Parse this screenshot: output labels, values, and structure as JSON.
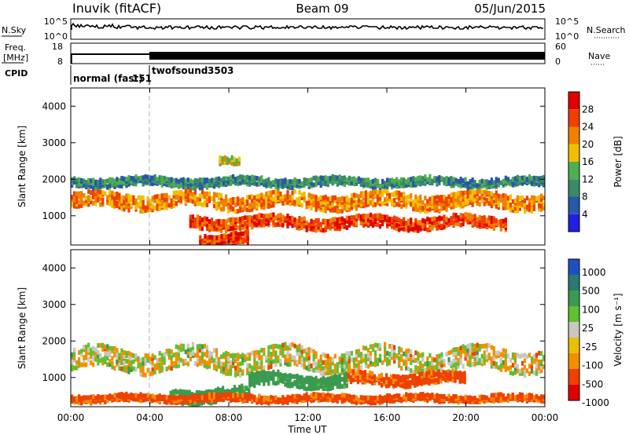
{
  "header": {
    "title": "Inuvik (fitACF)",
    "beam": "Beam 09",
    "date": "05/Jun/2015"
  },
  "strips": {
    "nsky_label": "N.Sky",
    "nsearch_label": "N.Search",
    "nsky_ticks": [
      "10^5",
      "10^0"
    ],
    "freq_label_1": "Freq.",
    "freq_label_2": "[MHz]",
    "freq_ticks": [
      "18",
      "8"
    ],
    "nave_label": "Nave",
    "nave_ticks": [
      "60",
      "0"
    ],
    "cpid_label": "CPID",
    "cpid_segments": [
      {
        "name": "normal (fast)",
        "id": "151",
        "start": "00:00"
      },
      {
        "name": "twofsound",
        "id": "3503",
        "start": "04:00"
      }
    ]
  },
  "colors": {
    "power_scale": [
      "#2020e0",
      "#2858a8",
      "#3a8a6a",
      "#4fae4f",
      "#f0c000",
      "#f08000",
      "#f04000",
      "#e00000"
    ],
    "velocity_scale": [
      "#e00000",
      "#f04000",
      "#f09000",
      "#e8c000",
      "#c8c8c0",
      "#60c030",
      "#3a9a50",
      "#2a7a70",
      "#2050c0"
    ]
  },
  "chart_data": [
    {
      "type": "heatmap",
      "name": "power",
      "ylabel": "Slant Range [km]",
      "yticks": [
        "4000",
        "3000",
        "2000",
        "1000"
      ],
      "ylim": [
        200,
        4500
      ],
      "colorbar_label": "Power [dB]",
      "colorbar_ticks": [
        "28",
        "24",
        "20",
        "16",
        "12",
        "8",
        "4"
      ],
      "clim": [
        0,
        32
      ],
      "structures": [
        {
          "x0": 0,
          "x1": 24,
          "range_center": 1500,
          "range_width": 400,
          "value": 22
        },
        {
          "x0": 6,
          "x1": 22,
          "range_center": 900,
          "range_width": 300,
          "value": 26
        },
        {
          "x0": 6.5,
          "x1": 9,
          "range_center": 450,
          "range_width": 300,
          "value": 26
        },
        {
          "x0": 0,
          "x1": 24,
          "range_center": 2000,
          "range_width": 200,
          "value": 10
        },
        {
          "x0": 7.5,
          "x1": 8.5,
          "range_center": 2550,
          "range_width": 150,
          "value": 18
        }
      ]
    },
    {
      "type": "heatmap",
      "name": "velocity",
      "ylabel": "Slant Range [km]",
      "xlabel": "Time UT",
      "xticks": [
        "00:00",
        "04:00",
        "08:00",
        "12:00",
        "16:00",
        "20:00",
        "00:00"
      ],
      "yticks": [
        "4000",
        "3000",
        "2000",
        "1000"
      ],
      "ylim": [
        200,
        4500
      ],
      "colorbar_label": "Velocity [m s⁻¹]",
      "colorbar_ticks": [
        "1000",
        "500",
        "100",
        "25",
        "-25",
        "-100",
        "-500",
        "-1000"
      ],
      "clim": [
        -1000,
        1000
      ],
      "structures": [
        {
          "x0": 0,
          "x1": 24,
          "range_center": 1600,
          "range_width": 600,
          "value": 0
        },
        {
          "x0": 9,
          "x1": 14,
          "range_center": 1000,
          "range_width": 350,
          "value": 200
        },
        {
          "x0": 14,
          "x1": 20,
          "range_center": 1050,
          "range_width": 300,
          "value": -150
        },
        {
          "x0": 5,
          "x1": 9,
          "range_center": 600,
          "range_width": 350,
          "value": 200
        },
        {
          "x0": 0,
          "x1": 24,
          "range_center": 500,
          "range_width": 150,
          "value": -150
        }
      ]
    }
  ]
}
